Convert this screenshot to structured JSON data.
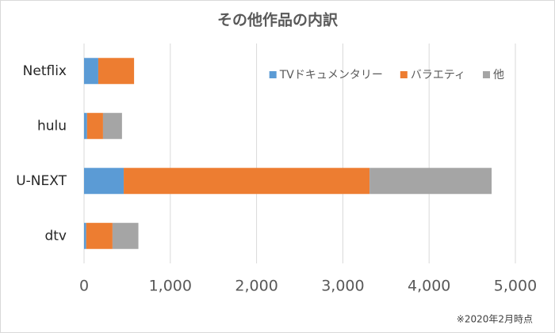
{
  "chart_data": {
    "type": "stacked-barh",
    "title": "その他作品の内訳",
    "categories": [
      "Netflix",
      "hulu",
      "U-NEXT",
      "dtv"
    ],
    "series": [
      {
        "name": "TVドキュメンタリー",
        "color": "#5b9bd5",
        "values": [
          165,
          35,
          460,
          25
        ]
      },
      {
        "name": "バラエティ",
        "color": "#ed7d31",
        "values": [
          415,
          185,
          2850,
          305
        ]
      },
      {
        "name": "他",
        "color": "#a5a5a5",
        "values": [
          0,
          220,
          1415,
          300
        ]
      }
    ],
    "xlim": [
      0,
      5000
    ],
    "xticks": [
      0,
      {
        "value": 1000,
        "label": "1,000"
      },
      {
        "value": 2000,
        "label": "2,000"
      },
      {
        "value": 3000,
        "label": "3,000"
      },
      {
        "value": 4000,
        "label": "4,000"
      },
      {
        "value": 5000,
        "label": "5,000"
      }
    ],
    "grid": true,
    "legend": "top-right",
    "footnote": "※2020年2月時点"
  }
}
